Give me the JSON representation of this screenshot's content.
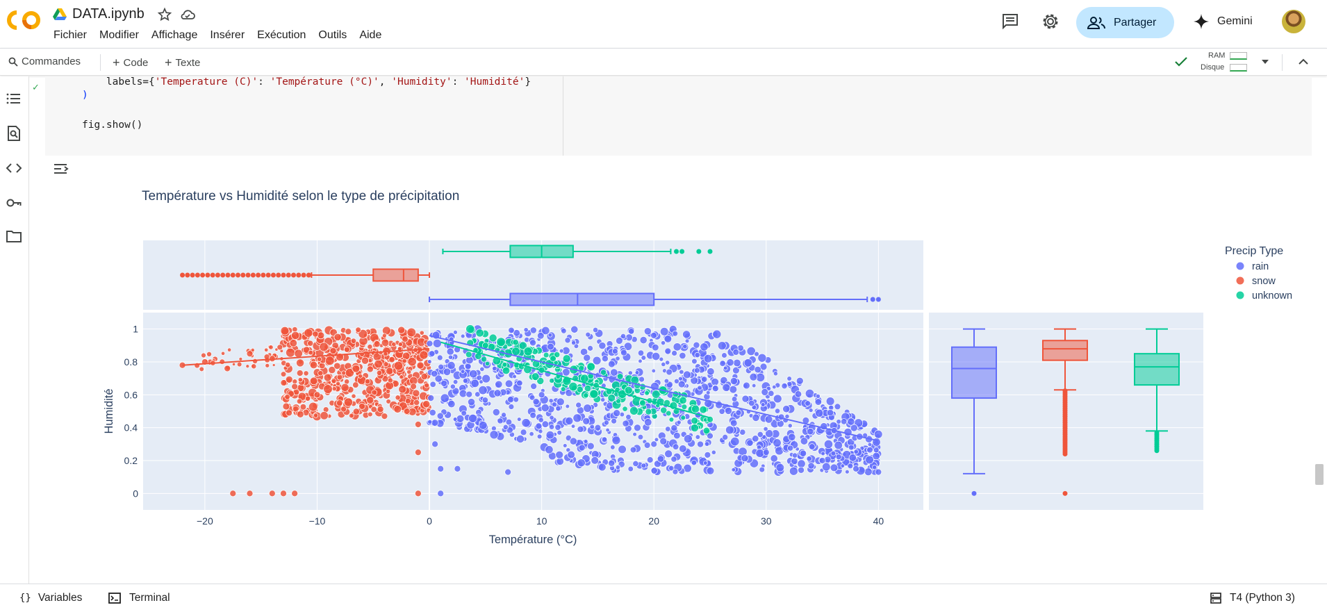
{
  "header": {
    "title": "DATA.ipynb",
    "menu": [
      "Fichier",
      "Modifier",
      "Affichage",
      "Insérer",
      "Exécution",
      "Outils",
      "Aide"
    ],
    "share_label": "Partager",
    "gemini_label": "Gemini"
  },
  "toolbar": {
    "commands_label": "Commandes",
    "code_label": "Code",
    "text_label": "Texte",
    "ram_label": "RAM",
    "disk_label": "Disque"
  },
  "code": {
    "line1": "    labels={'Temperature (C)': 'Température (°C)', 'Humidity': 'Humidité'}",
    "line2": ")",
    "line3": "fig.show()"
  },
  "status": {
    "variables_label": "Variables",
    "terminal_label": "Terminal",
    "runtime_label": "T4 (Python 3)"
  },
  "colors": {
    "rain": "#636efa",
    "snow": "#ef553b",
    "unknown": "#00cc96",
    "plot_bg": "#e5ecf6",
    "accent_share": "#c2e7ff"
  },
  "chart_data": {
    "type": "scatter",
    "title": "Température vs Humidité selon le type de précipitation",
    "xlabel": "Température (°C)",
    "ylabel": "Humidité",
    "xlim": [
      -25.5,
      44
    ],
    "ylim": [
      -0.1,
      1.1
    ],
    "x_ticks": [
      "−20",
      "−10",
      "0",
      "10",
      "20",
      "30",
      "40"
    ],
    "y_ticks": [
      "0",
      "0.2",
      "0.4",
      "0.6",
      "0.8",
      "1"
    ],
    "legend": {
      "title": "Precip Type",
      "placement": "right",
      "entries": [
        "rain",
        "snow",
        "unknown"
      ]
    },
    "trendlines": [
      {
        "name": "snow",
        "x": [
          -22,
          0
        ],
        "y": [
          0.78,
          0.88
        ]
      },
      {
        "name": "rain",
        "x": [
          0,
          40
        ],
        "y": [
          0.96,
          0.32
        ]
      },
      {
        "name": "unknown",
        "x": [
          1,
          25
        ],
        "y": [
          0.92,
          0.46
        ]
      }
    ],
    "scatter_regions": [
      {
        "name": "snow",
        "x_range": [
          -21,
          0
        ],
        "points": [
          [
            -22,
            0.78
          ],
          [
            -20,
            0.8
          ],
          [
            -18,
            0.76
          ],
          [
            -16,
            0.85
          ],
          [
            -14,
            0.82
          ],
          [
            -12.5,
            0.49
          ],
          [
            -12,
            0.65
          ],
          [
            -10,
            0.6
          ],
          [
            -8,
            0.55
          ],
          [
            -6,
            0.53
          ],
          [
            -4,
            0.47
          ],
          [
            -2,
            0.5
          ],
          [
            -1,
            0.42
          ],
          [
            -1,
            0.25
          ],
          [
            -17.5,
            0.0
          ],
          [
            -16,
            0.0
          ],
          [
            -14,
            0.0
          ],
          [
            -13,
            0.0
          ],
          [
            -12,
            0.0
          ],
          [
            -1,
            0.0
          ]
        ]
      },
      {
        "name": "rain",
        "x_range": [
          0,
          40
        ],
        "points": [
          [
            0.5,
            0.3
          ],
          [
            1,
            0.15
          ],
          [
            2.5,
            0.15
          ],
          [
            7,
            0.13
          ],
          [
            10,
            0.6
          ],
          [
            15,
            0.4
          ],
          [
            20,
            0.3
          ],
          [
            25,
            0.35
          ],
          [
            30,
            0.25
          ],
          [
            35,
            0.2
          ],
          [
            38,
            0.15
          ],
          [
            40,
            0.13
          ],
          [
            1,
            0.0
          ]
        ]
      },
      {
        "name": "unknown",
        "x_range": [
          3,
          25
        ],
        "points": [
          [
            5,
            0.9
          ],
          [
            8,
            0.82
          ],
          [
            10,
            0.75
          ],
          [
            13,
            0.7
          ],
          [
            16,
            0.62
          ],
          [
            19,
            0.55
          ],
          [
            22,
            0.5
          ],
          [
            25,
            0.45
          ]
        ]
      }
    ],
    "marginal_x_boxes": [
      {
        "name": "unknown",
        "whisker_low": 1.2,
        "q1": 7.2,
        "median": 10,
        "q3": 12.8,
        "whisker_high": 21.5,
        "outliers": [
          22,
          22.5,
          24,
          25
        ]
      },
      {
        "name": "snow",
        "whisker_low": -10.5,
        "q1": -5,
        "median": -2.3,
        "q3": -1,
        "whisker_high": 0,
        "outliers_range": [
          -22,
          -10.5
        ]
      },
      {
        "name": "rain",
        "whisker_low": 0,
        "q1": 7.2,
        "median": 13.2,
        "q3": 20,
        "whisker_high": 39,
        "outliers": [
          39.5,
          40
        ]
      }
    ],
    "marginal_y_boxes": [
      {
        "name": "rain",
        "whisker_low": 0.12,
        "q1": 0.58,
        "median": 0.76,
        "q3": 0.89,
        "whisker_high": 1.0,
        "outliers": [
          0.0
        ]
      },
      {
        "name": "snow",
        "whisker_low": 0.63,
        "q1": 0.81,
        "median": 0.88,
        "q3": 0.93,
        "whisker_high": 1.0,
        "outliers_range": [
          0.24,
          0.63
        ],
        "outliers": [
          0.0
        ]
      },
      {
        "name": "unknown",
        "whisker_low": 0.38,
        "q1": 0.66,
        "median": 0.77,
        "q3": 0.85,
        "whisker_high": 1.0,
        "outliers_range": [
          0.26,
          0.38
        ]
      }
    ]
  }
}
